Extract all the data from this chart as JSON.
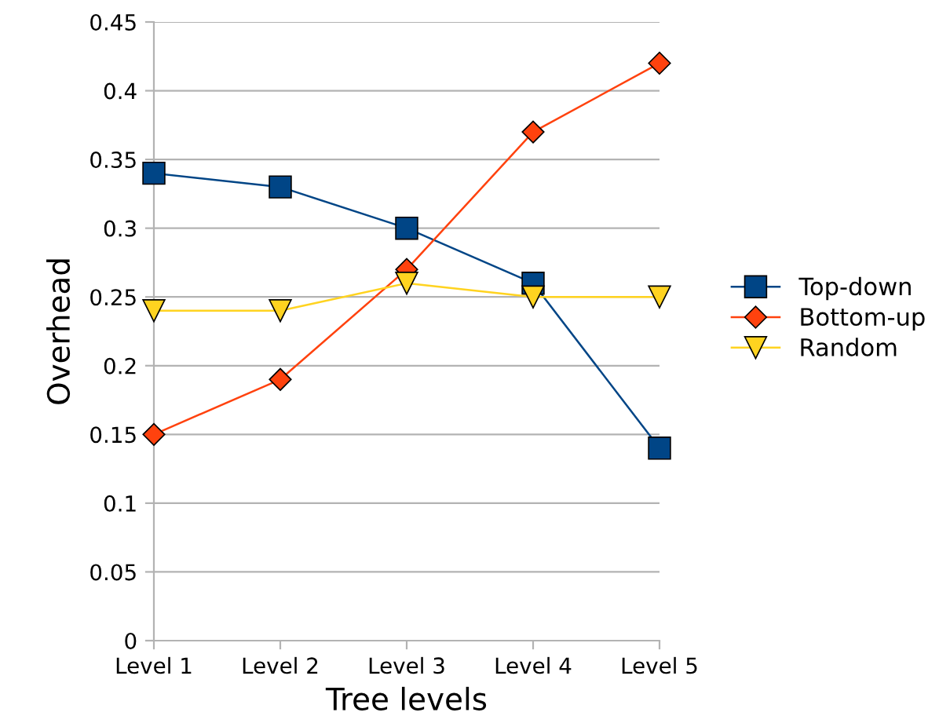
{
  "chart_data": {
    "type": "line",
    "xlabel": "Tree levels",
    "ylabel": "Overhead",
    "categories": [
      "Level 1",
      "Level 2",
      "Level 3",
      "Level 4",
      "Level 5"
    ],
    "series": [
      {
        "name": "Top-down",
        "color": "#004586",
        "marker": "square",
        "values": [
          0.34,
          0.33,
          0.3,
          0.26,
          0.14
        ]
      },
      {
        "name": "Bottom-up",
        "color": "#ff420e",
        "marker": "diamond",
        "values": [
          0.15,
          0.19,
          0.27,
          0.37,
          0.42
        ]
      },
      {
        "name": "Random",
        "color": "#ffd320",
        "marker": "triangle",
        "values": [
          0.24,
          0.24,
          0.26,
          0.25,
          0.25
        ]
      }
    ],
    "ylim": [
      0,
      0.45
    ],
    "yticks": [
      0,
      0.05,
      0.1,
      0.15,
      0.2,
      0.25,
      0.3,
      0.35,
      0.4,
      0.45
    ],
    "grid": "y",
    "legend": "right"
  }
}
